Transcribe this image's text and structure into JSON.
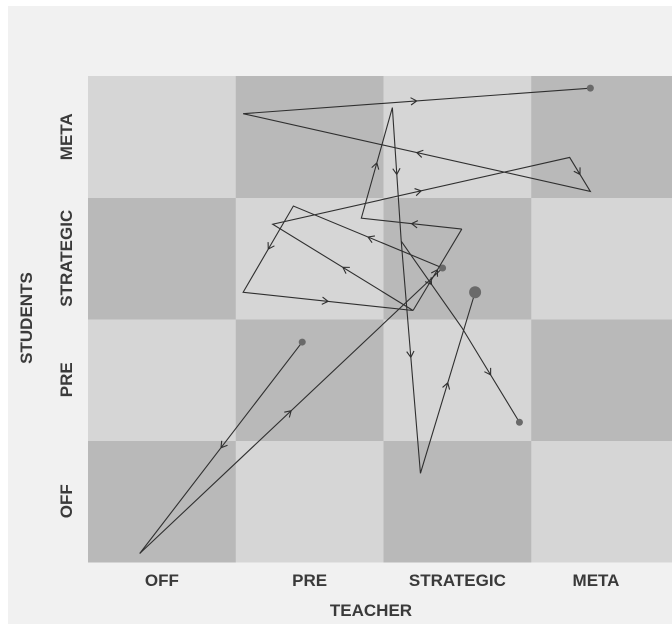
{
  "chart_data": {
    "type": "line",
    "xlabel": "TEACHER",
    "ylabel": "STUDENTS",
    "x_categories": [
      "OFF",
      "PRE",
      "STRATEGIC",
      "META"
    ],
    "y_categories": [
      "OFF",
      "PRE",
      "STRATEGIC",
      "META"
    ],
    "xlim": [
      0,
      4
    ],
    "ylim": [
      0,
      4
    ],
    "grid": "checkerboard",
    "colors": {
      "light": "#d6d6d6",
      "dark": "#b9b9b9",
      "line": "#2f2f2f",
      "marker": "#6a6a6a"
    },
    "series": [
      {
        "points": [
          [
            1.45,
            1.81
          ],
          [
            0.35,
            0.07
          ]
        ],
        "start_marker": "medium"
      },
      {
        "points": [
          [
            0.35,
            0.07
          ],
          [
            2.4,
            2.42
          ]
        ]
      },
      {
        "points": [
          [
            2.4,
            2.42
          ],
          [
            1.39,
            2.93
          ],
          [
            1.05,
            2.22
          ],
          [
            2.2,
            2.07
          ],
          [
            1.25,
            2.78
          ],
          [
            3.26,
            3.33
          ],
          [
            3.4,
            3.05
          ],
          [
            1.05,
            3.69
          ],
          [
            3.4,
            3.9
          ]
        ],
        "start_marker": "medium",
        "end_marker": "medium"
      },
      {
        "points": [
          [
            2.2,
            2.07
          ],
          [
            2.53,
            2.74
          ]
        ]
      },
      {
        "points": [
          [
            2.53,
            2.74
          ],
          [
            1.85,
            2.83
          ],
          [
            2.06,
            3.74
          ],
          [
            2.12,
            2.64
          ]
        ]
      },
      {
        "points": [
          [
            2.12,
            2.64
          ],
          [
            2.25,
            0.73
          ],
          [
            2.62,
            2.22
          ]
        ],
        "end_marker": "large"
      },
      {
        "points": [
          [
            2.12,
            2.64
          ],
          [
            2.53,
            1.93
          ],
          [
            2.92,
            1.15
          ]
        ],
        "end_marker": "medium"
      }
    ]
  }
}
